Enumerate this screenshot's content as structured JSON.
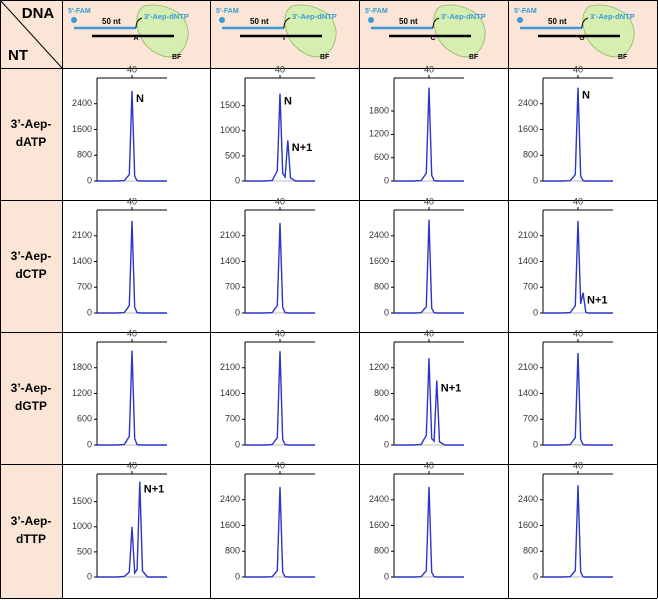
{
  "table": {
    "corner": [
      "DNA",
      "NT"
    ],
    "columns": [
      {
        "five_prime": "5'-FAM",
        "length": "50 nt",
        "template_base": "A",
        "primer": "3'-Aep-dNTP",
        "enzyme": "BF"
      },
      {
        "five_prime": "5'-FAM",
        "length": "50 nt",
        "template_base": "T",
        "primer": "3'-Aep-dNTP",
        "enzyme": "BF"
      },
      {
        "five_prime": "5'-FAM",
        "length": "50 nt",
        "template_base": "C",
        "primer": "3'-Aep-dNTP",
        "enzyme": "BF"
      },
      {
        "five_prime": "5'-FAM",
        "length": "50 nt",
        "template_base": "G",
        "primer": "3'-Aep-dNTP",
        "enzyme": "BF"
      }
    ],
    "rows": [
      [
        "3’-Aep-",
        "dATP"
      ],
      [
        "3’-Aep-",
        "dCTP"
      ],
      [
        "3’-Aep-",
        "dGTP"
      ],
      [
        "3’-Aep-",
        "dTTP"
      ]
    ]
  },
  "chart_data": [
    {
      "type": "line",
      "color": "#2a35c9",
      "x": [
        31,
        36,
        38,
        39.3,
        40,
        40.7,
        41.3,
        42,
        42.7,
        44,
        49
      ],
      "values": [
        0,
        0,
        10,
        200,
        2800,
        150,
        10,
        0,
        0,
        0,
        0
      ],
      "xlim": [
        31,
        49
      ],
      "xticks": [
        40
      ],
      "ylim": [
        0,
        3200
      ],
      "yticks": [
        0,
        800,
        1600,
        2400
      ],
      "annotations": [
        "N"
      ]
    },
    {
      "type": "line",
      "color": "#2a35c9",
      "x": [
        31,
        36,
        38,
        39.3,
        40,
        40.7,
        41.3,
        42,
        42.7,
        44,
        49
      ],
      "values": [
        0,
        0,
        10,
        200,
        1740,
        150,
        80,
        810,
        60,
        0,
        0
      ],
      "xlim": [
        31,
        49
      ],
      "xticks": [
        40
      ],
      "ylim": [
        0,
        2050
      ],
      "yticks": [
        0,
        500,
        1000,
        1500
      ],
      "annotations": [
        "N",
        "N+1"
      ]
    },
    {
      "type": "line",
      "color": "#2a35c9",
      "x": [
        31,
        36,
        38,
        39.3,
        40,
        40.7,
        41.3,
        42,
        42.7,
        44,
        49
      ],
      "values": [
        0,
        0,
        10,
        200,
        2400,
        150,
        10,
        0,
        0,
        0,
        0
      ],
      "xlim": [
        31,
        49
      ],
      "xticks": [
        40
      ],
      "ylim": [
        0,
        2650
      ],
      "yticks": [
        0,
        600,
        1200,
        1800
      ],
      "annotations": []
    },
    {
      "type": "line",
      "color": "#2a35c9",
      "x": [
        31,
        36,
        38,
        39.3,
        40,
        40.7,
        41.3,
        42,
        42.7,
        44,
        49
      ],
      "values": [
        0,
        0,
        10,
        200,
        2900,
        150,
        10,
        0,
        0,
        0,
        0
      ],
      "xlim": [
        31,
        49
      ],
      "xticks": [
        40
      ],
      "ylim": [
        0,
        3200
      ],
      "yticks": [
        0,
        800,
        1600,
        2400
      ],
      "annotations": [
        "N"
      ]
    },
    {
      "type": "line",
      "color": "#2a35c9",
      "x": [
        31,
        36,
        38,
        39.3,
        40,
        40.7,
        41.3,
        42,
        42.7,
        44,
        49
      ],
      "values": [
        0,
        0,
        10,
        200,
        2500,
        150,
        10,
        0,
        0,
        0,
        0
      ],
      "xlim": [
        31,
        49
      ],
      "xticks": [
        40
      ],
      "ylim": [
        0,
        2800
      ],
      "yticks": [
        0,
        700,
        1400,
        2100
      ],
      "annotations": []
    },
    {
      "type": "line",
      "color": "#2a35c9",
      "x": [
        31,
        36,
        38,
        39.3,
        40,
        40.7,
        41.3,
        42,
        42.7,
        44,
        49
      ],
      "values": [
        0,
        0,
        10,
        200,
        2450,
        150,
        10,
        0,
        0,
        0,
        0
      ],
      "xlim": [
        31,
        49
      ],
      "xticks": [
        40
      ],
      "ylim": [
        0,
        2800
      ],
      "yticks": [
        0,
        700,
        1400,
        2100
      ],
      "annotations": []
    },
    {
      "type": "line",
      "color": "#2a35c9",
      "x": [
        31,
        36,
        38,
        39.3,
        40,
        40.7,
        41.3,
        42,
        42.7,
        44,
        49
      ],
      "values": [
        0,
        0,
        10,
        200,
        2900,
        150,
        10,
        0,
        0,
        0,
        0
      ],
      "xlim": [
        31,
        49
      ],
      "xticks": [
        40
      ],
      "ylim": [
        0,
        3200
      ],
      "yticks": [
        0,
        800,
        1600,
        2400
      ],
      "annotations": []
    },
    {
      "type": "line",
      "color": "#2a35c9",
      "x": [
        31,
        36,
        38,
        39.3,
        40,
        40.7,
        41.3,
        42,
        42.7,
        44,
        49
      ],
      "values": [
        0,
        0,
        10,
        200,
        2500,
        250,
        550,
        20,
        0,
        0,
        0
      ],
      "xlim": [
        31,
        49
      ],
      "xticks": [
        40
      ],
      "ylim": [
        0,
        2800
      ],
      "yticks": [
        0,
        700,
        1400,
        2100
      ],
      "annotations": [
        "N+1"
      ]
    },
    {
      "type": "line",
      "color": "#2a35c9",
      "x": [
        31,
        36,
        38,
        39.3,
        40,
        40.7,
        41.3,
        42,
        42.7,
        44,
        49
      ],
      "values": [
        0,
        0,
        10,
        200,
        2200,
        150,
        10,
        0,
        0,
        0,
        0
      ],
      "xlim": [
        31,
        49
      ],
      "xticks": [
        40
      ],
      "ylim": [
        0,
        2400
      ],
      "yticks": [
        0,
        600,
        1200,
        1800
      ],
      "annotations": []
    },
    {
      "type": "line",
      "color": "#2a35c9",
      "x": [
        31,
        36,
        38,
        39.3,
        40,
        40.7,
        41.3,
        42,
        42.7,
        44,
        49
      ],
      "values": [
        0,
        0,
        10,
        200,
        2550,
        150,
        10,
        0,
        0,
        0,
        0
      ],
      "xlim": [
        31,
        49
      ],
      "xticks": [
        40
      ],
      "ylim": [
        0,
        2800
      ],
      "yticks": [
        0,
        700,
        1400,
        2100
      ],
      "annotations": []
    },
    {
      "type": "line",
      "color": "#2a35c9",
      "x": [
        31,
        36,
        38,
        39.3,
        40,
        40.7,
        41.3,
        42,
        42.7,
        44,
        49
      ],
      "values": [
        0,
        0,
        10,
        150,
        1350,
        100,
        60,
        1000,
        50,
        0,
        0
      ],
      "xlim": [
        31,
        49
      ],
      "xticks": [
        40
      ],
      "ylim": [
        0,
        1600
      ],
      "yticks": [
        0,
        400,
        800,
        1200
      ],
      "annotations": [
        "N+1"
      ]
    },
    {
      "type": "line",
      "color": "#2a35c9",
      "x": [
        31,
        36,
        38,
        39.3,
        40,
        40.7,
        41.3,
        42,
        42.7,
        44,
        49
      ],
      "values": [
        0,
        0,
        10,
        200,
        2500,
        150,
        10,
        0,
        0,
        0,
        0
      ],
      "xlim": [
        31,
        49
      ],
      "xticks": [
        40
      ],
      "ylim": [
        0,
        2800
      ],
      "yticks": [
        0,
        700,
        1400,
        2100
      ],
      "annotations": []
    },
    {
      "type": "line",
      "color": "#2a35c9",
      "x": [
        31,
        36,
        38,
        39.3,
        40,
        40.7,
        41.3,
        42,
        42.7,
        44,
        49
      ],
      "values": [
        0,
        0,
        10,
        100,
        1000,
        80,
        150,
        1900,
        120,
        0,
        0
      ],
      "xlim": [
        31,
        49
      ],
      "xticks": [
        40
      ],
      "ylim": [
        0,
        2050
      ],
      "yticks": [
        0,
        500,
        1000,
        1500
      ],
      "annotations": [
        "N+1"
      ]
    },
    {
      "type": "line",
      "color": "#2a35c9",
      "x": [
        31,
        36,
        38,
        39.3,
        40,
        40.7,
        41.3,
        42,
        42.7,
        44,
        49
      ],
      "values": [
        0,
        0,
        10,
        200,
        2800,
        150,
        10,
        0,
        0,
        0,
        0
      ],
      "xlim": [
        31,
        49
      ],
      "xticks": [
        40
      ],
      "ylim": [
        0,
        3200
      ],
      "yticks": [
        0,
        800,
        1600,
        2400
      ],
      "annotations": []
    },
    {
      "type": "line",
      "color": "#2a35c9",
      "x": [
        31,
        36,
        38,
        39.3,
        40,
        40.7,
        41.3,
        42,
        42.7,
        44,
        49
      ],
      "values": [
        0,
        0,
        10,
        200,
        2800,
        150,
        10,
        0,
        0,
        0,
        0
      ],
      "xlim": [
        31,
        49
      ],
      "xticks": [
        40
      ],
      "ylim": [
        0,
        3200
      ],
      "yticks": [
        0,
        800,
        1600,
        2400
      ],
      "annotations": []
    },
    {
      "type": "line",
      "color": "#2a35c9",
      "x": [
        31,
        36,
        38,
        39.3,
        40,
        40.7,
        41.3,
        42,
        42.7,
        44,
        49
      ],
      "values": [
        0,
        0,
        10,
        200,
        2850,
        150,
        10,
        0,
        0,
        0,
        0
      ],
      "xlim": [
        31,
        49
      ],
      "xticks": [
        40
      ],
      "ylim": [
        0,
        3200
      ],
      "yticks": [
        0,
        800,
        1600,
        2400
      ],
      "annotations": []
    }
  ]
}
